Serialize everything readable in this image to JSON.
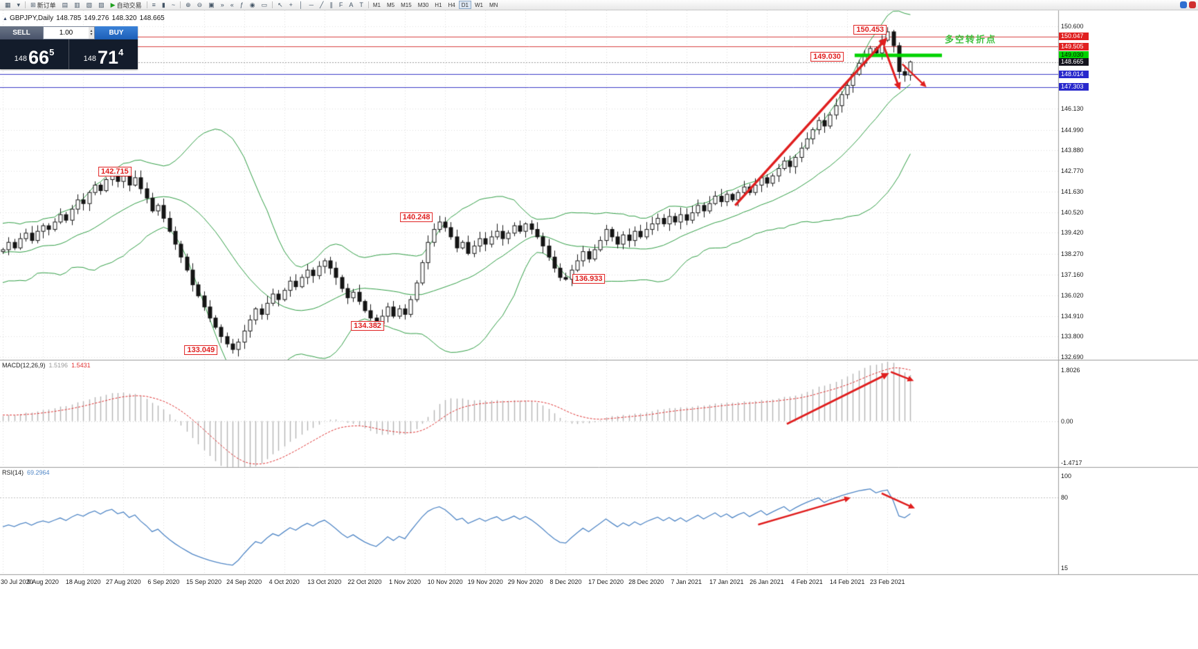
{
  "toolbar": {
    "buttons": [
      {
        "name": "new-chart",
        "glyph": "▦"
      },
      {
        "name": "chart-profiles",
        "glyph": "▾"
      },
      {
        "sep": true
      },
      {
        "name": "new-order",
        "glyph": "⊞",
        "label": "新订单"
      },
      {
        "name": "market-watch",
        "glyph": "▤"
      },
      {
        "name": "data-window",
        "glyph": "▥"
      },
      {
        "name": "navigator",
        "glyph": "▧"
      },
      {
        "name": "terminal",
        "glyph": "▨"
      },
      {
        "name": "autotrading",
        "glyph": "▶",
        "label": "自动交易",
        "glyph_color": "#1fa01f"
      },
      {
        "sep": true
      },
      {
        "name": "bar-chart",
        "glyph": "≡"
      },
      {
        "name": "candlestick-chart",
        "glyph": "▮"
      },
      {
        "name": "line-chart",
        "glyph": "~"
      },
      {
        "sep": true
      },
      {
        "name": "zoom-in",
        "glyph": "⊕"
      },
      {
        "name": "zoom-out",
        "glyph": "⊖"
      },
      {
        "name": "tile-windows",
        "glyph": "▣"
      },
      {
        "name": "auto-scroll",
        "glyph": "»"
      },
      {
        "name": "chart-shift",
        "glyph": "«"
      },
      {
        "name": "indicators",
        "glyph": "ƒ"
      },
      {
        "name": "periods",
        "glyph": "◉"
      },
      {
        "name": "templates",
        "glyph": "▭"
      },
      {
        "sep": true
      },
      {
        "name": "cursor",
        "glyph": "↖"
      },
      {
        "name": "crosshair",
        "glyph": "+"
      },
      {
        "name": "vertical-line",
        "glyph": "│"
      },
      {
        "name": "horizontal-line",
        "glyph": "─"
      },
      {
        "name": "trendline",
        "glyph": "╱"
      },
      {
        "name": "equidistant-channel",
        "glyph": "∥"
      },
      {
        "name": "fibonacci",
        "glyph": "F"
      },
      {
        "name": "text",
        "glyph": "A"
      },
      {
        "name": "arrows-tool",
        "glyph": "T"
      },
      {
        "sep": true
      }
    ],
    "timeframes": [
      "M1",
      "M5",
      "M15",
      "M30",
      "H1",
      "H4",
      "D1",
      "W1",
      "MN"
    ],
    "active_timeframe": "D1",
    "corner_icons": [
      {
        "name": "community-icon",
        "color": "#2f6fd0"
      },
      {
        "name": "alert-icon",
        "color": "#d03030"
      }
    ]
  },
  "symbol_line": {
    "symbol": "GBPJPY,Daily",
    "open": "148.785",
    "high": "149.276",
    "low": "148.320",
    "close": "148.665"
  },
  "trade_panel": {
    "sell_label": "SELL",
    "buy_label": "BUY",
    "volume": "1.00",
    "sell_price": {
      "small": "148",
      "big": "66",
      "sup": "5"
    },
    "buy_price": {
      "small": "148",
      "big": "71",
      "sup": "4"
    }
  },
  "price_axis": {
    "plain_labels": [
      {
        "text": "150.600",
        "v": 150.6
      },
      {
        "text": "146.130",
        "v": 146.13
      },
      {
        "text": "144.990",
        "v": 144.99
      },
      {
        "text": "143.880",
        "v": 143.88
      },
      {
        "text": "142.770",
        "v": 142.77
      },
      {
        "text": "141.630",
        "v": 141.63
      },
      {
        "text": "140.520",
        "v": 140.52
      },
      {
        "text": "139.420",
        "v": 139.42
      },
      {
        "text": "138.270",
        "v": 138.27
      },
      {
        "text": "137.160",
        "v": 137.16
      },
      {
        "text": "136.020",
        "v": 136.02
      },
      {
        "text": "134.910",
        "v": 134.91
      },
      {
        "text": "133.800",
        "v": 133.8
      },
      {
        "text": "132.690",
        "v": 132.69
      }
    ],
    "badges": [
      {
        "text": "150.047",
        "v": 150.047,
        "type": "red"
      },
      {
        "text": "149.505",
        "v": 149.505,
        "type": "red"
      },
      {
        "text": "149.030",
        "v": 149.03,
        "type": "green"
      },
      {
        "text": "148.665",
        "v": 148.665,
        "type": "dark"
      },
      {
        "text": "148.014",
        "v": 148.014,
        "type": "blue"
      },
      {
        "text": "147.303",
        "v": 147.303,
        "type": "blue"
      }
    ]
  },
  "time_axis": [
    "30 Jul 2020",
    "9 Aug 2020",
    "18 Aug 2020",
    "27 Aug 2020",
    "6 Sep 2020",
    "15 Sep 2020",
    "24 Sep 2020",
    "4 Oct 2020",
    "13 Oct 2020",
    "22 Oct 2020",
    "1 Nov 2020",
    "10 Nov 2020",
    "19 Nov 2020",
    "29 Nov 2020",
    "8 Dec 2020",
    "17 Dec 2020",
    "28 Dec 2020",
    "7 Jan 2021",
    "17 Jan 2021",
    "26 Jan 2021",
    "4 Feb 2021",
    "14 Feb 2021",
    "23 Feb 2021"
  ],
  "macd_panel": {
    "title": "MACD(12,26,9)",
    "value": "1.5196",
    "signal_value": "1.5431",
    "axis_labels": [
      {
        "text": "1.8026",
        "v": 1.8026
      },
      {
        "text": "0.00",
        "v": 0
      },
      {
        "text": "-1.4717",
        "v": -1.4717
      }
    ],
    "arrows": [
      {
        "x1_i": 136.5,
        "v1": -0.1,
        "x2_i": 154.3,
        "v2": 1.7,
        "w": 3
      },
      {
        "x1_i": 154.6,
        "v1": 1.74,
        "x2_i": 158.6,
        "v2": 1.42,
        "w": 2.5
      }
    ]
  },
  "rsi_panel": {
    "title": "RSI(14)",
    "value": "69.2964",
    "axis_labels": [
      {
        "text": "100",
        "v": 100
      },
      {
        "text": "80",
        "v": 80
      },
      {
        "text": "15",
        "v": 15
      }
    ],
    "level": 80,
    "arrows": [
      {
        "x1_i": 131.5,
        "v1": 55,
        "x2_i": 147.6,
        "v2": 80,
        "w": 2.5
      },
      {
        "x1_i": 153,
        "v1": 84,
        "x2_i": 158.8,
        "v2": 70,
        "w": 2.5
      }
    ]
  },
  "chart_data": {
    "type": "candlestick",
    "title": "GBPJPY Daily with Bollinger Bands(20,2), MACD(12,26,9), RSI(14)",
    "ylim": [
      132.69,
      150.6
    ],
    "bollinger_period": 20,
    "bollinger_dev": 2,
    "levels": [
      {
        "value": 150.047,
        "color": "#d84040",
        "style": "solid"
      },
      {
        "value": 149.505,
        "color": "#d84040",
        "style": "solid"
      },
      {
        "value": 148.665,
        "color": "#999999",
        "style": "dotted"
      },
      {
        "value": 148.014,
        "color": "#3c3cc8",
        "style": "solid"
      },
      {
        "value": 147.303,
        "color": "#3c3cc8",
        "style": "solid"
      }
    ],
    "highlight_line": {
      "value": 149.03,
      "i1": 148.3,
      "i2": 163.5,
      "color": "#00d300",
      "width": 5
    },
    "warmup_closes": [
      136.8,
      138.2,
      139.3,
      138.0,
      136.9,
      137.8,
      139.0,
      139.6,
      138.4,
      137.2,
      136.6,
      137.5,
      138.8,
      139.5,
      138.6,
      137.3,
      136.9,
      138.0,
      139.2,
      139.8,
      138.9,
      137.6,
      137.0,
      137.9,
      138.7,
      139.4,
      138.5,
      137.8,
      138.2,
      138.4
    ],
    "closes": [
      138.5,
      138.9,
      138.6,
      139.1,
      139.4,
      139.0,
      139.5,
      139.8,
      139.6,
      140.0,
      140.4,
      140.1,
      140.7,
      141.2,
      141.0,
      141.6,
      142.0,
      141.7,
      142.3,
      142.6,
      142.2,
      142.5,
      142.0,
      142.4,
      141.8,
      141.3,
      140.6,
      140.9,
      140.2,
      139.5,
      138.8,
      138.1,
      137.4,
      136.6,
      136.0,
      135.4,
      134.8,
      134.3,
      133.8,
      133.4,
      133.1,
      133.5,
      134.1,
      134.7,
      135.3,
      135.0,
      135.6,
      136.1,
      135.8,
      136.3,
      136.8,
      136.5,
      137.0,
      137.4,
      137.1,
      137.6,
      137.9,
      137.5,
      137.0,
      136.4,
      135.9,
      136.2,
      135.7,
      135.2,
      134.8,
      134.5,
      134.9,
      135.4,
      134.9,
      135.3,
      135.0,
      135.8,
      136.7,
      137.8,
      138.9,
      139.6,
      140.0,
      139.7,
      139.2,
      138.6,
      138.9,
      138.3,
      138.7,
      139.1,
      138.8,
      139.2,
      139.5,
      139.1,
      139.4,
      139.8,
      139.5,
      139.9,
      139.6,
      139.2,
      138.7,
      138.1,
      137.5,
      137.0,
      136.9,
      137.4,
      137.9,
      138.4,
      138.0,
      138.5,
      139.0,
      139.6,
      139.2,
      138.8,
      139.3,
      139.0,
      139.5,
      139.2,
      139.6,
      139.9,
      140.2,
      139.9,
      140.3,
      140.0,
      140.4,
      140.1,
      140.5,
      140.9,
      140.6,
      141.0,
      141.4,
      141.1,
      141.5,
      141.2,
      141.6,
      141.9,
      141.6,
      142.0,
      142.4,
      142.1,
      142.5,
      142.9,
      143.3,
      143.0,
      143.5,
      144.0,
      144.5,
      145.0,
      145.5,
      145.2,
      145.8,
      146.3,
      146.9,
      147.4,
      148.0,
      148.6,
      149.0,
      149.4,
      149.15,
      149.85,
      150.3,
      149.55,
      148.15,
      147.95,
      148.665
    ],
    "annotations": {
      "price_labels": [
        {
          "text": "150.453",
          "i": 151,
          "p": 150.42
        },
        {
          "text": "149.030",
          "i": 143.5,
          "p": 148.95
        },
        {
          "text": "142.715",
          "i": 19.5,
          "p": 142.72
        },
        {
          "text": "140.248",
          "i": 72,
          "p": 140.25
        },
        {
          "text": "136.933",
          "i": 102,
          "p": 136.93
        },
        {
          "text": "134.382",
          "i": 63.5,
          "p": 134.38
        },
        {
          "text": "133.049",
          "i": 34.5,
          "p": 133.05
        }
      ],
      "note": {
        "text": "多空转折点",
        "i": 168.5,
        "p": 149.92,
        "color": "#3ec13e"
      },
      "arrows": [
        {
          "x1_i": 127.5,
          "y1_p": 140.9,
          "x2_i": 154.0,
          "y2_p": 150.0,
          "w": 3.5
        },
        {
          "x1_i": 153.4,
          "y1_p": 149.5,
          "x2_i": 156.2,
          "y2_p": 147.15,
          "w": 3
        },
        {
          "x1_i": 156.6,
          "y1_p": 148.55,
          "x2_i": 160.8,
          "y2_p": 147.3,
          "w": 2.5
        }
      ]
    }
  }
}
